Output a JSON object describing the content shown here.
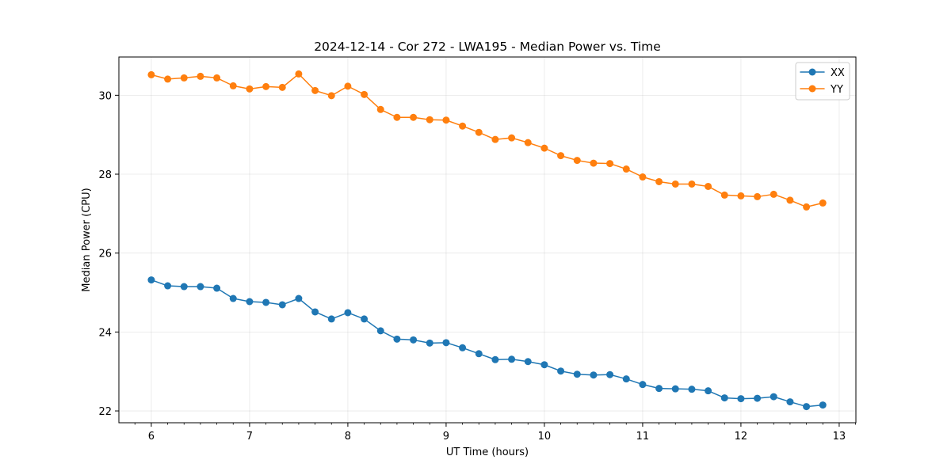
{
  "chart_data": {
    "type": "line",
    "title": "2024-12-14 - Cor 272 - LWA195 - Median Power vs. Time",
    "xlabel": "UT Time (hours)",
    "ylabel": "Median Power (CPU)",
    "xlim": [
      5.67,
      13.17
    ],
    "ylim": [
      21.7,
      30.97
    ],
    "xticks": [
      6,
      7,
      8,
      9,
      10,
      11,
      12,
      13
    ],
    "yticks": [
      22,
      24,
      26,
      28,
      30
    ],
    "grid": true,
    "legend_position": "top-right",
    "x": [
      6.0,
      6.1667,
      6.3333,
      6.5,
      6.6667,
      6.8333,
      7.0,
      7.1667,
      7.3333,
      7.5,
      7.6667,
      7.8333,
      8.0,
      8.1667,
      8.3333,
      8.5,
      8.6667,
      8.8333,
      9.0,
      9.1667,
      9.3333,
      9.5,
      9.6667,
      9.8333,
      10.0,
      10.1667,
      10.3333,
      10.5,
      10.6667,
      10.8333,
      11.0,
      11.1667,
      11.3333,
      11.5,
      11.6667,
      11.8333,
      12.0,
      12.1667,
      12.3333,
      12.5,
      12.6667,
      12.8333
    ],
    "series": [
      {
        "name": "XX",
        "color": "#1f77b4",
        "values": [
          25.32,
          25.17,
          25.15,
          25.15,
          25.11,
          24.85,
          24.77,
          24.75,
          24.69,
          24.85,
          24.51,
          24.33,
          24.49,
          24.33,
          24.03,
          23.82,
          23.8,
          23.72,
          23.73,
          23.6,
          23.45,
          23.3,
          23.31,
          23.25,
          23.17,
          23.01,
          22.93,
          22.91,
          22.92,
          22.81,
          22.67,
          22.57,
          22.56,
          22.55,
          22.51,
          22.33,
          22.31,
          22.32,
          22.36,
          22.23,
          22.11,
          22.15
        ]
      },
      {
        "name": "YY",
        "color": "#ff7f0e",
        "values": [
          30.52,
          30.41,
          30.44,
          30.48,
          30.44,
          30.24,
          30.16,
          30.22,
          30.2,
          30.54,
          30.12,
          29.99,
          30.23,
          30.02,
          29.64,
          29.44,
          29.44,
          29.38,
          29.37,
          29.22,
          29.06,
          28.88,
          28.92,
          28.8,
          28.66,
          28.47,
          28.35,
          28.28,
          28.27,
          28.13,
          27.93,
          27.81,
          27.75,
          27.75,
          27.69,
          27.47,
          27.45,
          27.43,
          27.49,
          27.34,
          27.17,
          27.27
        ]
      }
    ]
  }
}
